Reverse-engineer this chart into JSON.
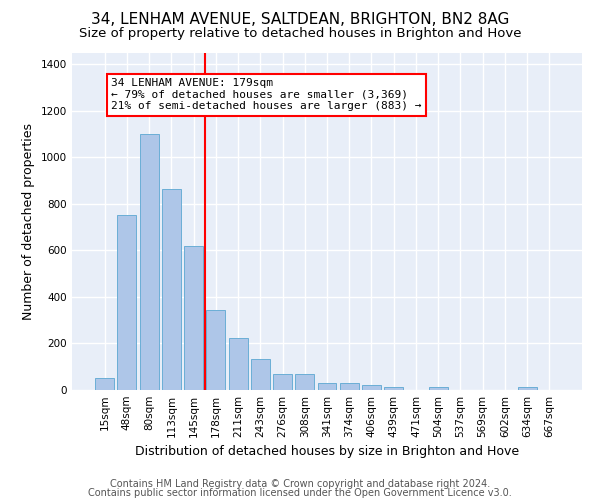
{
  "title": "34, LENHAM AVENUE, SALTDEAN, BRIGHTON, BN2 8AG",
  "subtitle": "Size of property relative to detached houses in Brighton and Hove",
  "xlabel": "Distribution of detached houses by size in Brighton and Hove",
  "ylabel": "Number of detached properties",
  "footer1": "Contains HM Land Registry data © Crown copyright and database right 2024.",
  "footer2": "Contains public sector information licensed under the Open Government Licence v3.0.",
  "categories": [
    "15sqm",
    "48sqm",
    "80sqm",
    "113sqm",
    "145sqm",
    "178sqm",
    "211sqm",
    "243sqm",
    "276sqm",
    "308sqm",
    "341sqm",
    "374sqm",
    "406sqm",
    "439sqm",
    "471sqm",
    "504sqm",
    "537sqm",
    "569sqm",
    "602sqm",
    "634sqm",
    "667sqm"
  ],
  "values": [
    50,
    750,
    1100,
    865,
    620,
    345,
    225,
    135,
    68,
    70,
    32,
    30,
    22,
    14,
    0,
    12,
    0,
    0,
    0,
    12,
    0
  ],
  "bar_color": "#aec6e8",
  "bar_edge_color": "#6baed6",
  "vline_x_index": 5,
  "vline_color": "red",
  "annotation_text": "34 LENHAM AVENUE: 179sqm\n← 79% of detached houses are smaller (3,369)\n21% of semi-detached houses are larger (883) →",
  "annotation_box_color": "white",
  "annotation_box_edge_color": "red",
  "ylim": [
    0,
    1450
  ],
  "yticks": [
    0,
    200,
    400,
    600,
    800,
    1000,
    1200,
    1400
  ],
  "background_color": "#e8eef8",
  "grid_color": "white",
  "title_fontsize": 11,
  "subtitle_fontsize": 9.5,
  "xlabel_fontsize": 9,
  "ylabel_fontsize": 9,
  "tick_fontsize": 7.5,
  "footer_fontsize": 7,
  "annotation_fontsize": 8
}
